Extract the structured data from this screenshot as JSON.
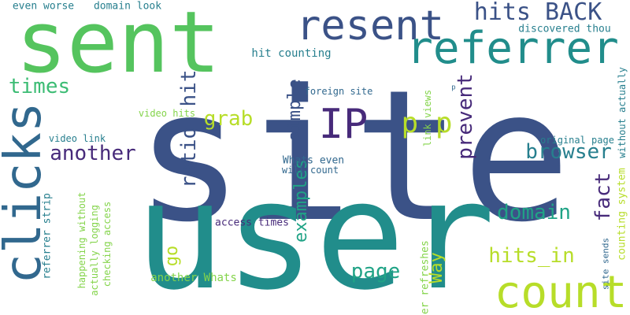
{
  "colors": {
    "indigo": "#3b5287",
    "teal": "#218d8b",
    "green": "#55c45e",
    "lime": "#b7dd29",
    "purple": "#472a7a",
    "steel": "#31688e"
  },
  "words": {
    "site": "site",
    "user": "user",
    "sent": "sent",
    "resent": "resent",
    "referrer": "referrer",
    "count": "count",
    "clicks": "clicks",
    "ip": "IP",
    "hits_back": "hits BACK",
    "pp": "p p",
    "times": "times",
    "ratio": "ratio",
    "hit": "hit",
    "grab": "grab",
    "another": "another",
    "simple": "simple",
    "prevent": "prevent",
    "browser": "browser",
    "fact": "fact",
    "domain": "domain",
    "hits_in": "hits_in",
    "page": "page",
    "examples": "examples",
    "way": "Way",
    "go": "go",
    "even_worse": "even worse",
    "domain_look": "domain look",
    "discovered_thou": "discovered thou",
    "hit_counting": "hit counting",
    "foreign_site": "foreign site",
    "p_small": "p",
    "whats_even": "Whats even",
    "will_count": "will count",
    "video_hits": "video hits",
    "video_link": "video link",
    "link_views": "link views",
    "original_page": "original page",
    "without_actually": "without actually",
    "counting_system": "counting system",
    "site_sends": "site sends",
    "referrer_strip": "referrer strip",
    "happening_without": "happening without",
    "actually_logging": "actually logging",
    "checking_access": "checking access",
    "access_times": "access times",
    "another_whats": "another Whats",
    "user_refreshes": "user refreshes"
  }
}
